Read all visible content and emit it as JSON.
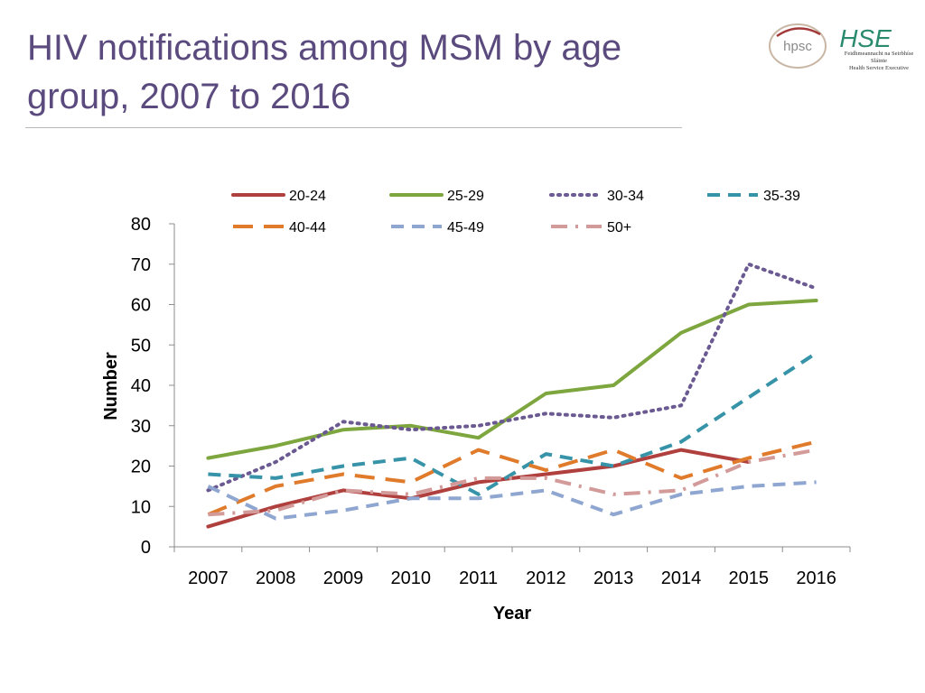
{
  "title": "HIV notifications among MSM by age group, 2007 to 2016",
  "logos": {
    "hpsc_text": "hpsc",
    "hse_mark": "HSE",
    "hse_line1": "Feidhmeannacht na Seirbhíse Sláinte",
    "hse_line2": "Health Service Executive"
  },
  "colors": {
    "title": "#5a4a7e",
    "s20_24": "#b0403e",
    "s25_29": "#7ea63e",
    "s30_34": "#6b5a92",
    "s35_39": "#3793a8",
    "s40_44": "#e07b2c",
    "s45_49": "#8ea6d0",
    "s50plus": "#d29a98"
  },
  "chart_data": {
    "type": "line",
    "xlabel": "Year",
    "ylabel": "Number",
    "x": [
      "2007",
      "2008",
      "2009",
      "2010",
      "2011",
      "2012",
      "2013",
      "2014",
      "2015",
      "2016"
    ],
    "ylim": [
      0,
      80
    ],
    "yticks": [
      0,
      10,
      20,
      30,
      40,
      50,
      60,
      70,
      80
    ],
    "legend_position": "top",
    "series": [
      {
        "name": "20-24",
        "style": "solid",
        "color": "#b0403e",
        "values": [
          5,
          10,
          14,
          12,
          16,
          18,
          20,
          24,
          21,
          null
        ]
      },
      {
        "name": "25-29",
        "style": "solid",
        "color": "#7ea63e",
        "values": [
          22,
          25,
          29,
          30,
          27,
          38,
          40,
          53,
          60,
          61
        ]
      },
      {
        "name": "30-34",
        "style": "dotted",
        "color": "#6b5a92",
        "values": [
          14,
          21,
          31,
          29,
          30,
          33,
          32,
          35,
          70,
          64
        ]
      },
      {
        "name": "35-39",
        "style": "dashed",
        "color": "#3793a8",
        "values": [
          18,
          17,
          20,
          22,
          13,
          23,
          20,
          26,
          37,
          48
        ]
      },
      {
        "name": "40-44",
        "style": "longdash",
        "color": "#e07b2c",
        "values": [
          8,
          15,
          18,
          16,
          24,
          19,
          24,
          17,
          22,
          26
        ]
      },
      {
        "name": "45-49",
        "style": "dashed",
        "color": "#8ea6d0",
        "values": [
          15,
          7,
          9,
          12,
          12,
          14,
          8,
          13,
          15,
          16
        ]
      },
      {
        "name": "50+",
        "style": "dashdot",
        "color": "#d29a98",
        "values": [
          8,
          9,
          14,
          13,
          17,
          17,
          13,
          14,
          21,
          24
        ]
      }
    ]
  }
}
